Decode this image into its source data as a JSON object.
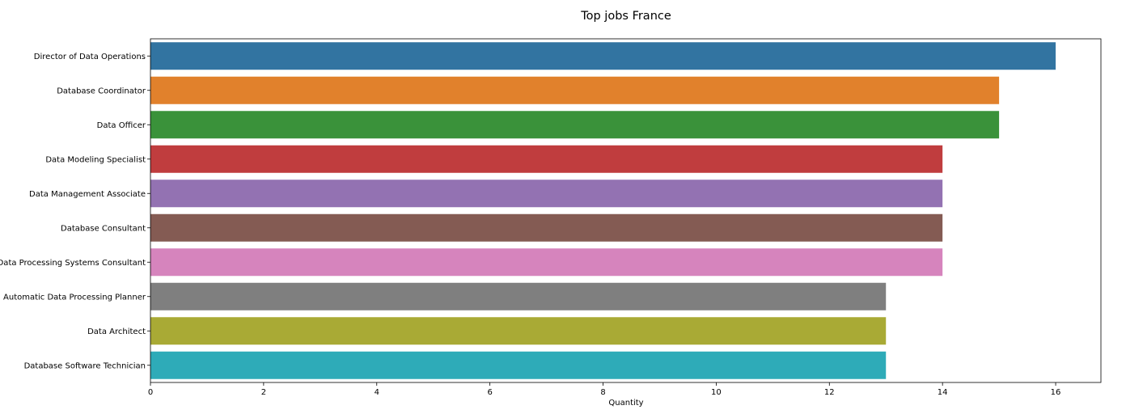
{
  "chart_data": {
    "type": "bar",
    "orientation": "horizontal",
    "title": "Top jobs France",
    "xlabel": "Quantity",
    "ylabel": "",
    "categories": [
      "Director of Data Operations",
      "Database Coordinator",
      "Data Officer",
      "Data Modeling Specialist",
      "Data Management Associate",
      "Database Consultant",
      "Electronic Data Processing Systems Consultant",
      "Automatic Data Processing Planner",
      "Data Architect",
      "Database Software Technician"
    ],
    "values": [
      16,
      15,
      15,
      14,
      14,
      14,
      14,
      13,
      13,
      13
    ],
    "colors": [
      "#3274a1",
      "#e1812c",
      "#3a923a",
      "#c03d3e",
      "#9372b2",
      "#845b53",
      "#d684bd",
      "#7f7f7f",
      "#a9aa35",
      "#2eabb8"
    ],
    "xlim": [
      0,
      16.8
    ],
    "xticks": [
      0,
      2,
      4,
      6,
      8,
      10,
      12,
      14,
      16
    ],
    "grid": false,
    "legend": "none"
  }
}
